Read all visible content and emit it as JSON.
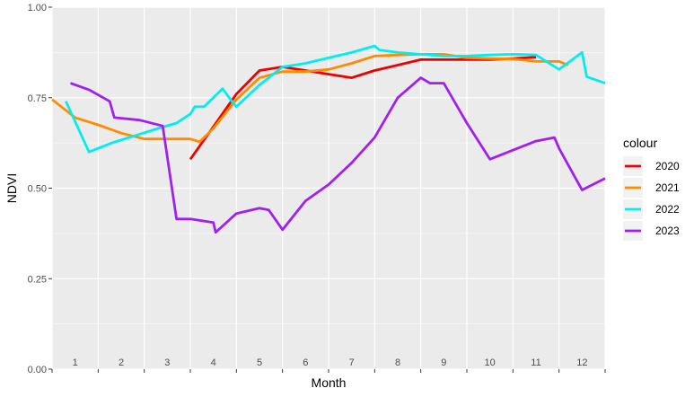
{
  "chart_data": {
    "type": "line",
    "xlabel": "Month",
    "ylabel": "NDVI",
    "xlim": [
      0.5,
      12.5
    ],
    "ylim": [
      0,
      1
    ],
    "y_ticks": [
      "0.00",
      "0.25",
      "0.50",
      "0.75",
      "1.00"
    ],
    "x_tick_labels": [
      "1",
      "2",
      "3",
      "4",
      "5",
      "6",
      "7",
      "8",
      "9",
      "10",
      "11",
      "12"
    ],
    "grid": true,
    "legend": {
      "title": "colour",
      "position": "right"
    },
    "series": [
      {
        "name": "2020",
        "color": "#ee0000",
        "x": [
          3.5,
          4.0,
          4.5,
          5.0,
          5.5,
          6.0,
          6.5,
          7.0,
          7.5,
          8.0,
          8.5,
          9.0,
          9.5,
          10.0,
          10.5,
          11.0
        ],
        "y": [
          0.58,
          0.67,
          0.76,
          0.825,
          0.835,
          0.825,
          0.815,
          0.805,
          0.825,
          0.84,
          0.855,
          0.855,
          0.855,
          0.855,
          0.858,
          0.862
        ]
      },
      {
        "name": "2021",
        "color": "#ff8c00",
        "x": [
          0.5,
          1.0,
          1.5,
          2.0,
          2.5,
          3.0,
          3.5,
          3.7,
          4.0,
          4.5,
          5.0,
          5.5,
          6.0,
          6.5,
          7.0,
          7.5,
          8.0,
          8.5,
          9.0,
          9.5,
          10.0,
          10.5,
          11.0,
          11.5,
          11.7
        ],
        "y": [
          0.745,
          0.695,
          0.675,
          0.652,
          0.636,
          0.636,
          0.636,
          0.628,
          0.665,
          0.745,
          0.805,
          0.822,
          0.822,
          0.828,
          0.845,
          0.865,
          0.868,
          0.87,
          0.87,
          0.86,
          0.858,
          0.857,
          0.85,
          0.85,
          0.84
        ]
      },
      {
        "name": "2022",
        "color": "#00eeee",
        "x": [
          0.8,
          1.3,
          1.8,
          2.3,
          2.8,
          3.2,
          3.5,
          3.6,
          3.8,
          4.2,
          4.4,
          4.5,
          5.0,
          5.5,
          6.0,
          6.5,
          7.0,
          7.5,
          7.6,
          8.0,
          8.5,
          9.0,
          9.5,
          10.0,
          10.5,
          11.0,
          11.5,
          12.0,
          12.1,
          12.5
        ],
        "y": [
          0.74,
          0.6,
          0.625,
          0.645,
          0.665,
          0.68,
          0.705,
          0.725,
          0.725,
          0.775,
          0.74,
          0.725,
          0.785,
          0.835,
          0.845,
          0.86,
          0.875,
          0.893,
          0.882,
          0.875,
          0.87,
          0.865,
          0.865,
          0.868,
          0.87,
          0.868,
          0.828,
          0.875,
          0.808,
          0.79
        ]
      },
      {
        "name": "2023",
        "color": "#a020f0",
        "x": [
          0.9,
          1.3,
          1.75,
          1.85,
          2.4,
          2.9,
          3.2,
          3.5,
          4.0,
          4.05,
          4.5,
          5.0,
          5.2,
          5.5,
          6.0,
          6.5,
          7.0,
          7.5,
          8.0,
          8.5,
          8.7,
          9.0,
          9.5,
          10.0,
          10.5,
          11.0,
          11.4,
          11.5,
          12.0,
          12.5
        ],
        "y": [
          0.79,
          0.772,
          0.74,
          0.695,
          0.688,
          0.672,
          0.415,
          0.415,
          0.405,
          0.378,
          0.43,
          0.445,
          0.44,
          0.385,
          0.465,
          0.51,
          0.57,
          0.64,
          0.75,
          0.805,
          0.79,
          0.79,
          0.68,
          0.58,
          0.605,
          0.63,
          0.64,
          0.61,
          0.495,
          0.527
        ]
      }
    ]
  }
}
